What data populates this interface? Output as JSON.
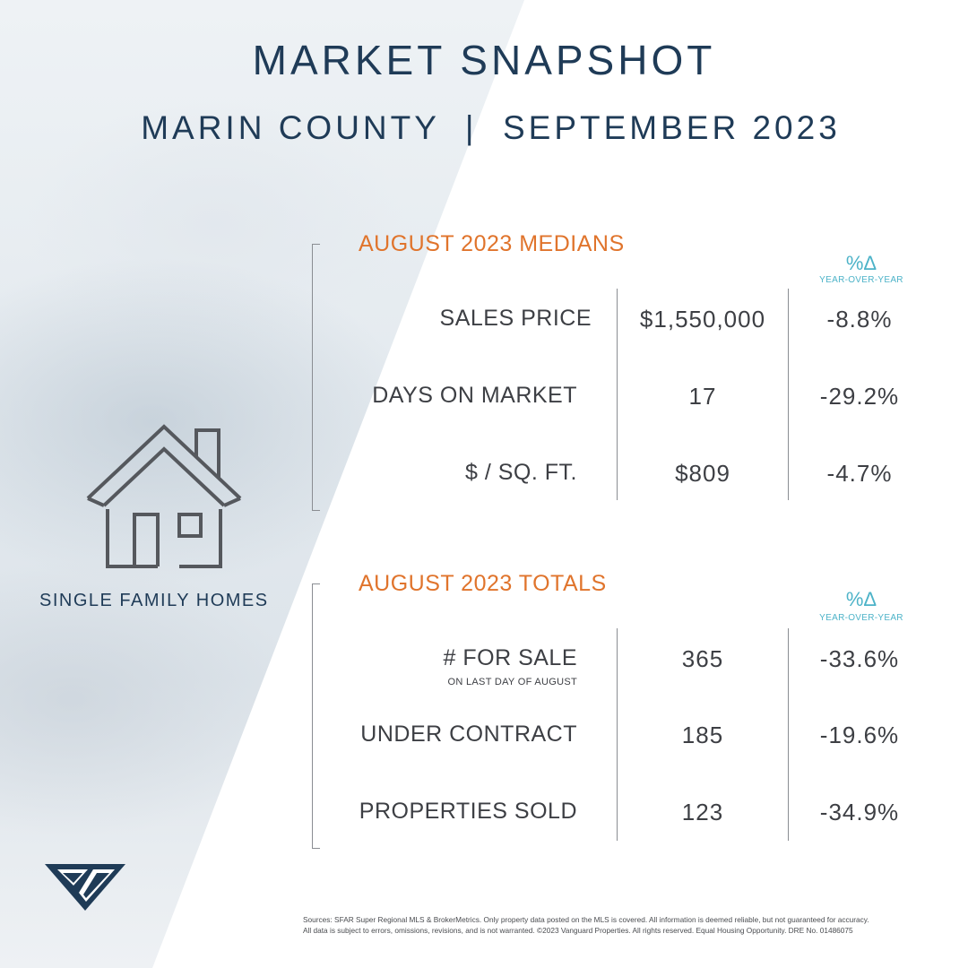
{
  "header": {
    "title": "MARKET SNAPSHOT",
    "subtitle": "MARIN COUNTY  |  SEPTEMBER 2023"
  },
  "property_type": {
    "icon": "house-icon",
    "label": "SINGLE FAMILY HOMES"
  },
  "medians": {
    "heading": "AUGUST 2023 MEDIANS",
    "delta_symbol": "%Δ",
    "delta_label": "YEAR-OVER-YEAR",
    "rows": [
      {
        "label": "SALES PRICE",
        "value": "$1,550,000",
        "change": "-8.8%"
      },
      {
        "label": "DAYS ON MARKET",
        "value": "17",
        "change": "-29.2%"
      },
      {
        "label": "$ / SQ. FT.",
        "value": "$809",
        "change": "-4.7%"
      }
    ]
  },
  "totals": {
    "heading": "AUGUST 2023 TOTALS",
    "delta_symbol": "%Δ",
    "delta_label": "YEAR-OVER-YEAR",
    "rows": [
      {
        "label": "# FOR SALE",
        "sublabel": "ON LAST DAY OF AUGUST",
        "value": "365",
        "change": "-33.6%"
      },
      {
        "label": "UNDER CONTRACT",
        "value": "185",
        "change": "-19.6%"
      },
      {
        "label": "PROPERTIES SOLD",
        "value": "123",
        "change": "-34.9%"
      }
    ]
  },
  "logo": {
    "icon": "vanguard-logo-icon",
    "color": "#1f3b57"
  },
  "colors": {
    "navy": "#1f3b57",
    "orange": "#e0742c",
    "teal": "#4db3c8"
  },
  "footnote": {
    "line1": "Sources: SFAR Super Regional MLS & BrokerMetrics. Only property data posted on the MLS is covered. All information is deemed reliable, but not guaranteed for accuracy.",
    "line2": "All data is subject to errors, omissions, revisions, and is not warranted. ©2023 Vanguard Properties. All rights reserved. Equal Housing Opportunity. DRE No. 01486075"
  }
}
